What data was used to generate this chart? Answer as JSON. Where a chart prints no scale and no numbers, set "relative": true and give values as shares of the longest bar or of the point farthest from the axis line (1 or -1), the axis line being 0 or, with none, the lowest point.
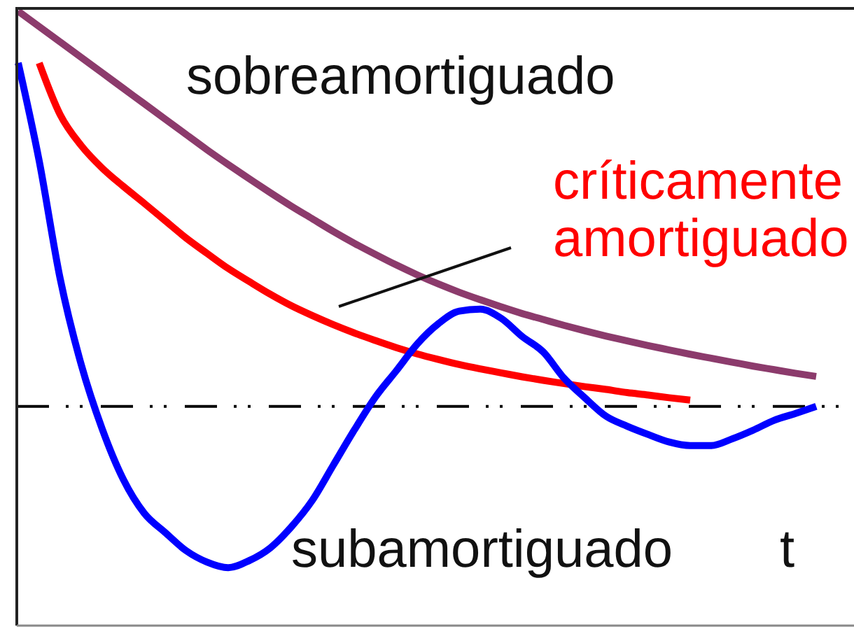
{
  "chart_data": {
    "type": "line",
    "xlabel": "t",
    "relative": true,
    "categories": [
      null,
      null,
      null,
      null,
      null,
      null,
      null,
      null,
      null,
      null,
      null,
      null,
      null,
      null,
      null,
      null,
      null,
      null,
      null,
      null,
      null,
      null,
      null,
      null,
      null,
      null,
      null,
      null,
      null,
      null,
      null,
      null,
      null,
      null,
      null,
      null,
      null,
      null,
      null
    ],
    "series": [
      {
        "name": "sobreamortiguado",
        "color": "#8c3b6c",
        "values": [
          1,
          0.961,
          0.922,
          0.883,
          0.844,
          0.805,
          0.766,
          0.727,
          0.688,
          0.649,
          0.612,
          0.576,
          0.541,
          0.507,
          0.475,
          0.443,
          0.413,
          0.385,
          0.358,
          0.333,
          0.31,
          0.289,
          0.27,
          0.252,
          0.235,
          0.22,
          0.205,
          0.191,
          0.178,
          0.166,
          0.154,
          0.143,
          0.132,
          0.122,
          0.112,
          0.102,
          0.093,
          0.084,
          0.076
        ]
      },
      {
        "name": "críticamente amortiguado",
        "color": "#ff0000",
        "values": [
          null,
          0.869,
          0.738,
          0.66,
          0.603,
          0.557,
          0.514,
          0.47,
          0.426,
          0.387,
          0.349,
          0.316,
          0.284,
          0.255,
          0.23,
          0.207,
          0.186,
          0.167,
          0.149,
          0.133,
          0.119,
          0.106,
          0.095,
          0.085,
          0.075,
          0.066,
          0.058,
          0.05,
          0.043,
          0.035,
          0.029,
          0.022,
          0.016,
          null,
          null,
          null,
          null,
          null,
          null
        ]
      },
      {
        "name": "subamortiguado",
        "color": "#0000ff",
        "values": [
          0.869,
          0.621,
          0.323,
          0.106,
          -0.057,
          -0.184,
          -0.27,
          -0.319,
          -0.365,
          -0.394,
          -0.408,
          -0.39,
          -0.358,
          -0.305,
          -0.238,
          -0.149,
          -0.06,
          0.023,
          0.09,
          0.158,
          0.209,
          0.241,
          0.246,
          0.223,
          0.177,
          0.138,
          0.071,
          0.021,
          -0.025,
          -0.05,
          -0.071,
          -0.09,
          -0.099,
          -0.099,
          -0.082,
          -0.06,
          -0.035,
          -0.018,
          0
        ]
      }
    ],
    "ref_lines": [
      {
        "axis": "y",
        "value": 0,
        "color": "#000000",
        "line_style": "dashdot"
      }
    ]
  }
}
